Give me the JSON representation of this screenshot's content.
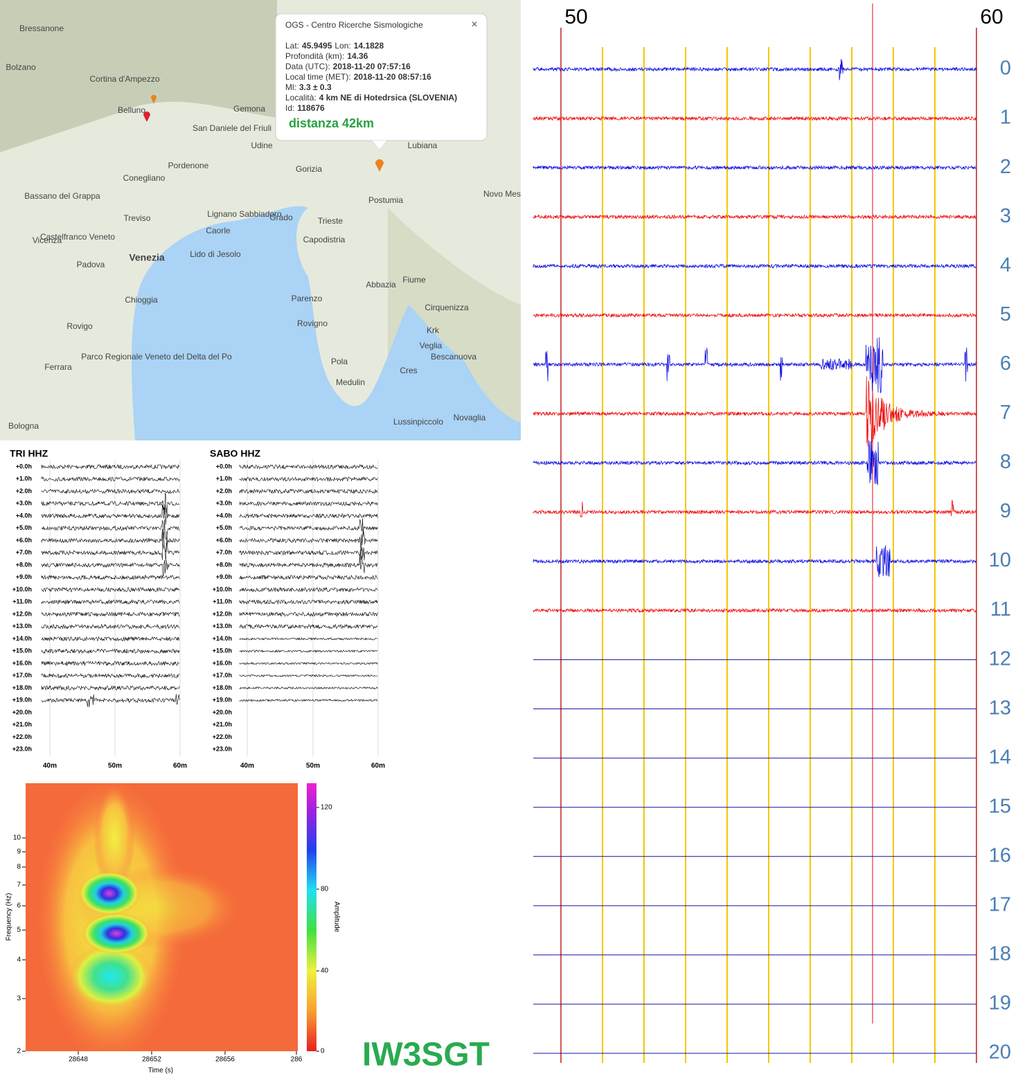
{
  "map": {
    "places": [
      "Bressanone",
      "Bolzano",
      "Cortina d'Ampezzo",
      "Belluno",
      "Udine",
      "Pordenone",
      "Conegliano",
      "Bassano del Grappa",
      "Treviso",
      "Castelfranco Veneto",
      "Vicenza",
      "Padova",
      "Venezia",
      "Chioggia",
      "Rovigo",
      "Ferrara",
      "Bologna",
      "Gemona",
      "San Daniele del Friuli",
      "Gorizia",
      "Lubiana",
      "Postumia",
      "Trieste",
      "Capodistria",
      "Lignano Sabbiadoro",
      "Grado",
      "Caorle",
      "Lido di Jesolo",
      "Fiume",
      "Abbazia",
      "Parenzo",
      "Rovigno",
      "Pola",
      "Medulin",
      "Cres",
      "Krk",
      "Lussinpiccolo",
      "Novaglia",
      "Cirquenizza",
      "Novo Mes",
      "Parco Regionale Veneto del Delta del Po",
      "Bescanuova",
      "Veglia"
    ],
    "popup": {
      "title": "OGS - Centro Ricerche Sismologiche",
      "close": "×",
      "lines": [
        [
          {
            "label": "Lat:",
            "value": "45.9495"
          },
          {
            "label": "Lon:",
            "value": "14.1828"
          }
        ],
        [
          {
            "label": "Profondità (km):",
            "value": "14.36"
          }
        ],
        [
          {
            "label": "Data (UTC):",
            "value": "2018-11-20 07:57:16"
          }
        ],
        [
          {
            "label": "Local time (MET):",
            "value": "2018-11-20 08:57:16"
          }
        ],
        [
          {
            "label": "Ml:",
            "value": "3.3 ± 0.3"
          }
        ],
        [
          {
            "label": "Località:",
            "value": "4 km NE di Hotedrsica (SLOVENIA)"
          }
        ],
        [
          {
            "label": "Id:",
            "value": "118676"
          }
        ]
      ],
      "distance": "distanza 42km"
    }
  },
  "helicorders": [
    {
      "title": "TRI HHZ",
      "minutes": [
        "40m",
        "50m",
        "60m"
      ]
    },
    {
      "title": "SABO HHZ",
      "minutes": [
        "40m",
        "50m",
        "60m"
      ]
    }
  ],
  "hours": [
    "+0.0h",
    "+1.0h",
    "+2.0h",
    "+3.0h",
    "+4.0h",
    "+5.0h",
    "+6.0h",
    "+7.0h",
    "+8.0h",
    "+9.0h",
    "+10.0h",
    "+11.0h",
    "+12.0h",
    "+13.0h",
    "+14.0h",
    "+15.0h",
    "+16.0h",
    "+17.0h",
    "+18.0h",
    "+19.0h",
    "+20.0h",
    "+21.0h",
    "+22.0h",
    "+23.0h"
  ],
  "spectrogram": {
    "xlabel": "Time (s)",
    "ylabel": "Frequency (Hz)",
    "clabel": "Amplitude",
    "xticks": [
      "28648",
      "28652",
      "28656",
      "286"
    ],
    "yticks": [
      "2",
      "3",
      "4",
      "5",
      "6",
      "7",
      "8",
      "9",
      "10"
    ],
    "cticks": [
      "0",
      "40",
      "80",
      "120"
    ]
  },
  "drum": {
    "top": [
      "50",
      "60"
    ],
    "rows": [
      "0",
      "1",
      "2",
      "3",
      "4",
      "5",
      "6",
      "7",
      "8",
      "9",
      "10",
      "11",
      "12",
      "13",
      "14",
      "15",
      "16",
      "17",
      "18",
      "19",
      "20"
    ]
  },
  "callsign": "IW3SGT"
}
